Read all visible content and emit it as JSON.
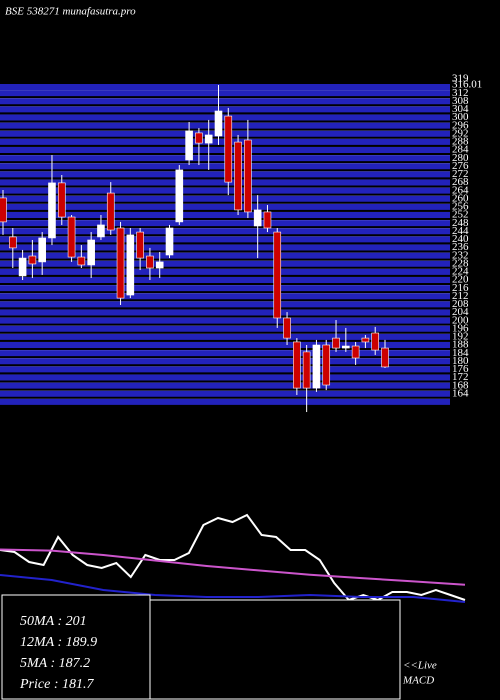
{
  "chart_data": [
    {
      "type": "candlestick",
      "title": "BSE 538271 munafasutra.pro",
      "open": [
        263.4,
        244.2,
        225.0,
        234.8,
        231.9,
        243.7,
        270.8,
        254.0,
        234.3,
        230.4,
        244.2,
        265.8,
        248.6,
        215.6,
        246.6,
        234.8,
        228.9,
        235.3,
        251.6,
        282.1,
        295.4,
        290.4,
        293.9,
        303.7,
        290.9,
        291.9,
        249.6,
        256.5,
        246.6,
        204.3,
        192.5,
        187.6,
        169.8,
        191.0,
        194.4,
        189.5,
        190.5,
        194.4,
        196.9,
        189.5
      ],
      "high": [
        267.3,
        248.6,
        237.8,
        242.7,
        246.6,
        284.5,
        274.7,
        255.0,
        240.2,
        246.6,
        255.0,
        271.2,
        251.6,
        248.6,
        248.6,
        238.8,
        236.8,
        250.1,
        279.6,
        300.8,
        297.8,
        301.8,
        319.0,
        307.7,
        294.4,
        301.8,
        264.8,
        259.9,
        248.6,
        207.2,
        194.4,
        191.0,
        193.5,
        193.5,
        203.3,
        199.4,
        192.5,
        195.9,
        199.9,
        193.5
      ],
      "low": [
        245.2,
        228.9,
        223.0,
        224.0,
        225.5,
        240.2,
        250.1,
        231.9,
        228.9,
        224.0,
        242.7,
        245.2,
        210.7,
        214.1,
        227.9,
        223.0,
        224.0,
        233.8,
        250.1,
        279.6,
        279.6,
        277.2,
        289.5,
        264.8,
        255.0,
        253.5,
        233.8,
        246.6,
        199.4,
        191.0,
        166.4,
        158.0,
        167.9,
        168.8,
        187.6,
        187.6,
        181.2,
        189.5,
        186.1,
        179.7
      ],
      "close": [
        251.6,
        238.8,
        233.8,
        230.9,
        243.7,
        270.8,
        254.0,
        234.3,
        230.4,
        242.7,
        250.1,
        247.6,
        214.1,
        245.2,
        233.8,
        228.9,
        231.9,
        248.6,
        277.2,
        296.4,
        290.4,
        294.4,
        306.2,
        271.2,
        257.5,
        256.5,
        257.5,
        248.6,
        204.3,
        194.4,
        169.8,
        169.8,
        191.0,
        171.3,
        189.5,
        190.5,
        184.6,
        192.5,
        188.5,
        180.2
      ],
      "up_color": "#ffffff",
      "down_color": "#cc0000",
      "grid": true,
      "grid_color": "#2222bb",
      "ylim": [
        159,
        319
      ],
      "yticks": [
        319,
        316.01,
        312,
        308,
        304,
        300,
        296,
        292,
        288,
        284,
        280,
        276,
        272,
        268,
        264,
        260,
        256,
        252,
        248,
        244,
        240,
        236,
        232,
        228,
        224,
        220,
        216,
        212,
        208,
        204,
        200,
        196,
        192,
        188,
        184,
        180,
        176,
        172,
        168,
        164
      ]
    },
    {
      "type": "line",
      "ylim": [
        0,
        100
      ],
      "series": [
        {
          "color": "#ffffff",
          "values": [
            54.5,
            52.7,
            43.6,
            40.9,
            66.4,
            50,
            40.9,
            38.2,
            42.7,
            30,
            50,
            45.5,
            45.5,
            51.8,
            77.3,
            83.6,
            80,
            86.4,
            68.2,
            66.4,
            54.5,
            54.5,
            45.5,
            24.5,
            9.1,
            13.6,
            9.1,
            16.4,
            16.4,
            13.6,
            18.2,
            13.6,
            9.1
          ]
        },
        {
          "color": "#cc55cc",
          "values": [
            55,
            54,
            50,
            45,
            40,
            36,
            32,
            29,
            26,
            23
          ]
        },
        {
          "color": "#2222cc",
          "values": [
            31.8,
            27.3,
            18.2,
            13.6,
            11.8,
            11.8,
            13.6,
            11.8,
            11.8,
            7.3
          ]
        }
      ]
    }
  ],
  "info": [
    "50MA : 201",
    "12MA : 189.9",
    "5MA : 187.2",
    "Price   : 181.7"
  ],
  "macd_label": [
    "<<Live",
    "MACD"
  ]
}
